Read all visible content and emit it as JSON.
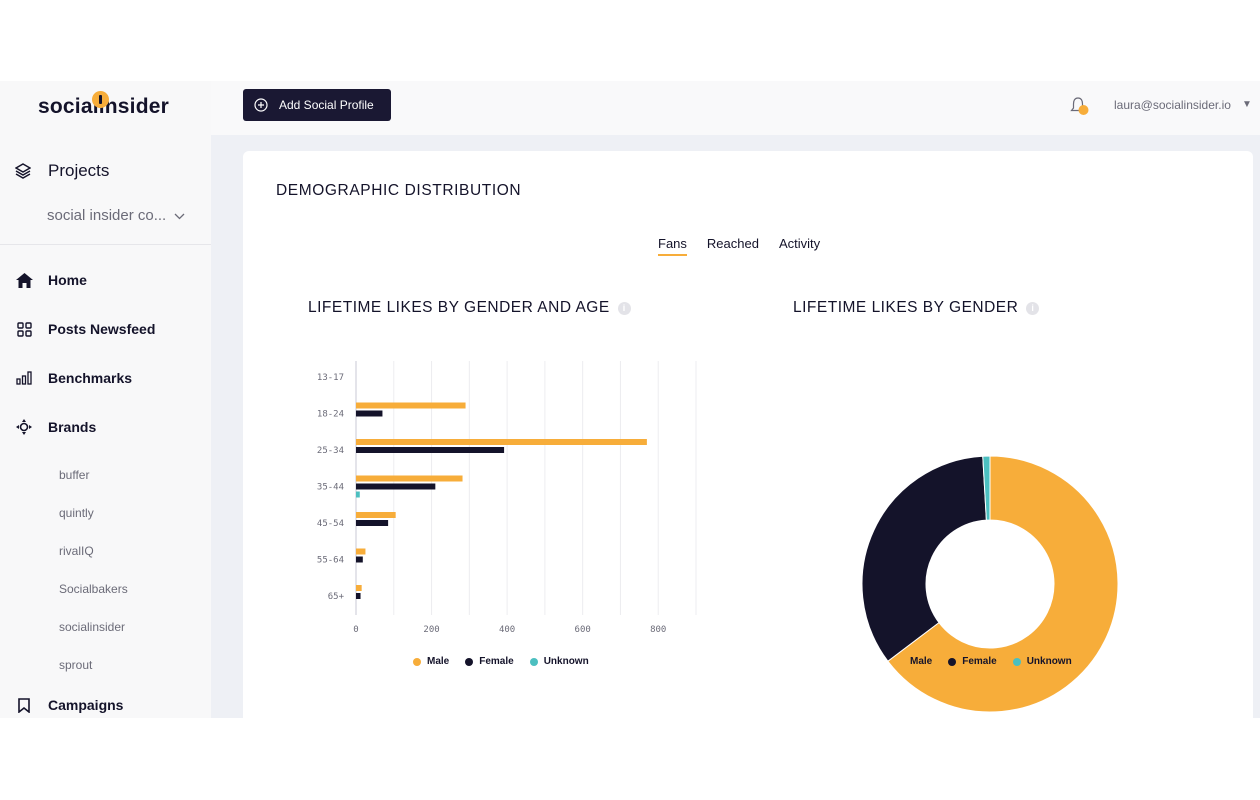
{
  "app": {
    "logo_text": "socialinsider"
  },
  "sidebar": {
    "projects_label": "Projects",
    "project_selected": "social insider co...",
    "nav": [
      {
        "label": "Home",
        "icon": "home-icon"
      },
      {
        "label": "Posts Newsfeed",
        "icon": "grid-icon"
      },
      {
        "label": "Benchmarks",
        "icon": "bar-chart-icon"
      },
      {
        "label": "Brands",
        "icon": "crosshair-icon"
      }
    ],
    "brands": [
      "buffer",
      "quintly",
      "rivalIQ",
      "Socialbakers",
      "socialinsider",
      "sprout"
    ],
    "campaigns_label": "Campaigns"
  },
  "topbar": {
    "add_button_label": "Add Social Profile",
    "user_email": "laura@socialinsider.io"
  },
  "main": {
    "title": "DEMOGRAPHIC DISTRIBUTION",
    "tabs": [
      "Fans",
      "Reached",
      "Activity"
    ],
    "active_tab": "Fans",
    "bar_chart_title": "LIFETIME LIKES BY GENDER AND AGE",
    "donut_chart_title": "LIFETIME LIKES BY GENDER"
  },
  "colors": {
    "male": "#f7ad3a",
    "female": "#14132a",
    "unknown": "#4cbfc0",
    "accent": "#f7ad3a"
  },
  "chart_data": [
    {
      "type": "bar",
      "orientation": "horizontal",
      "title": "LIFETIME LIKES BY GENDER AND AGE",
      "categories": [
        "13-17",
        "18-24",
        "25-34",
        "35-44",
        "45-54",
        "55-64",
        "65+"
      ],
      "series": [
        {
          "name": "Male",
          "values": [
            0,
            290,
            770,
            282,
            105,
            25,
            15
          ]
        },
        {
          "name": "Female",
          "values": [
            0,
            70,
            392,
            210,
            85,
            18,
            12
          ]
        },
        {
          "name": "Unknown",
          "values": [
            0,
            0,
            0,
            10,
            0,
            0,
            0
          ]
        }
      ],
      "xlim": [
        0,
        900
      ],
      "xticks": [
        0,
        200,
        400,
        600,
        800
      ],
      "legend": "bottom"
    },
    {
      "type": "pie",
      "style": "donut",
      "title": "LIFETIME LIKES BY GENDER",
      "labels": [
        "Male",
        "Female",
        "Unknown"
      ],
      "values": [
        64.7,
        34.4,
        0.9
      ],
      "legend": "bottom"
    }
  ]
}
